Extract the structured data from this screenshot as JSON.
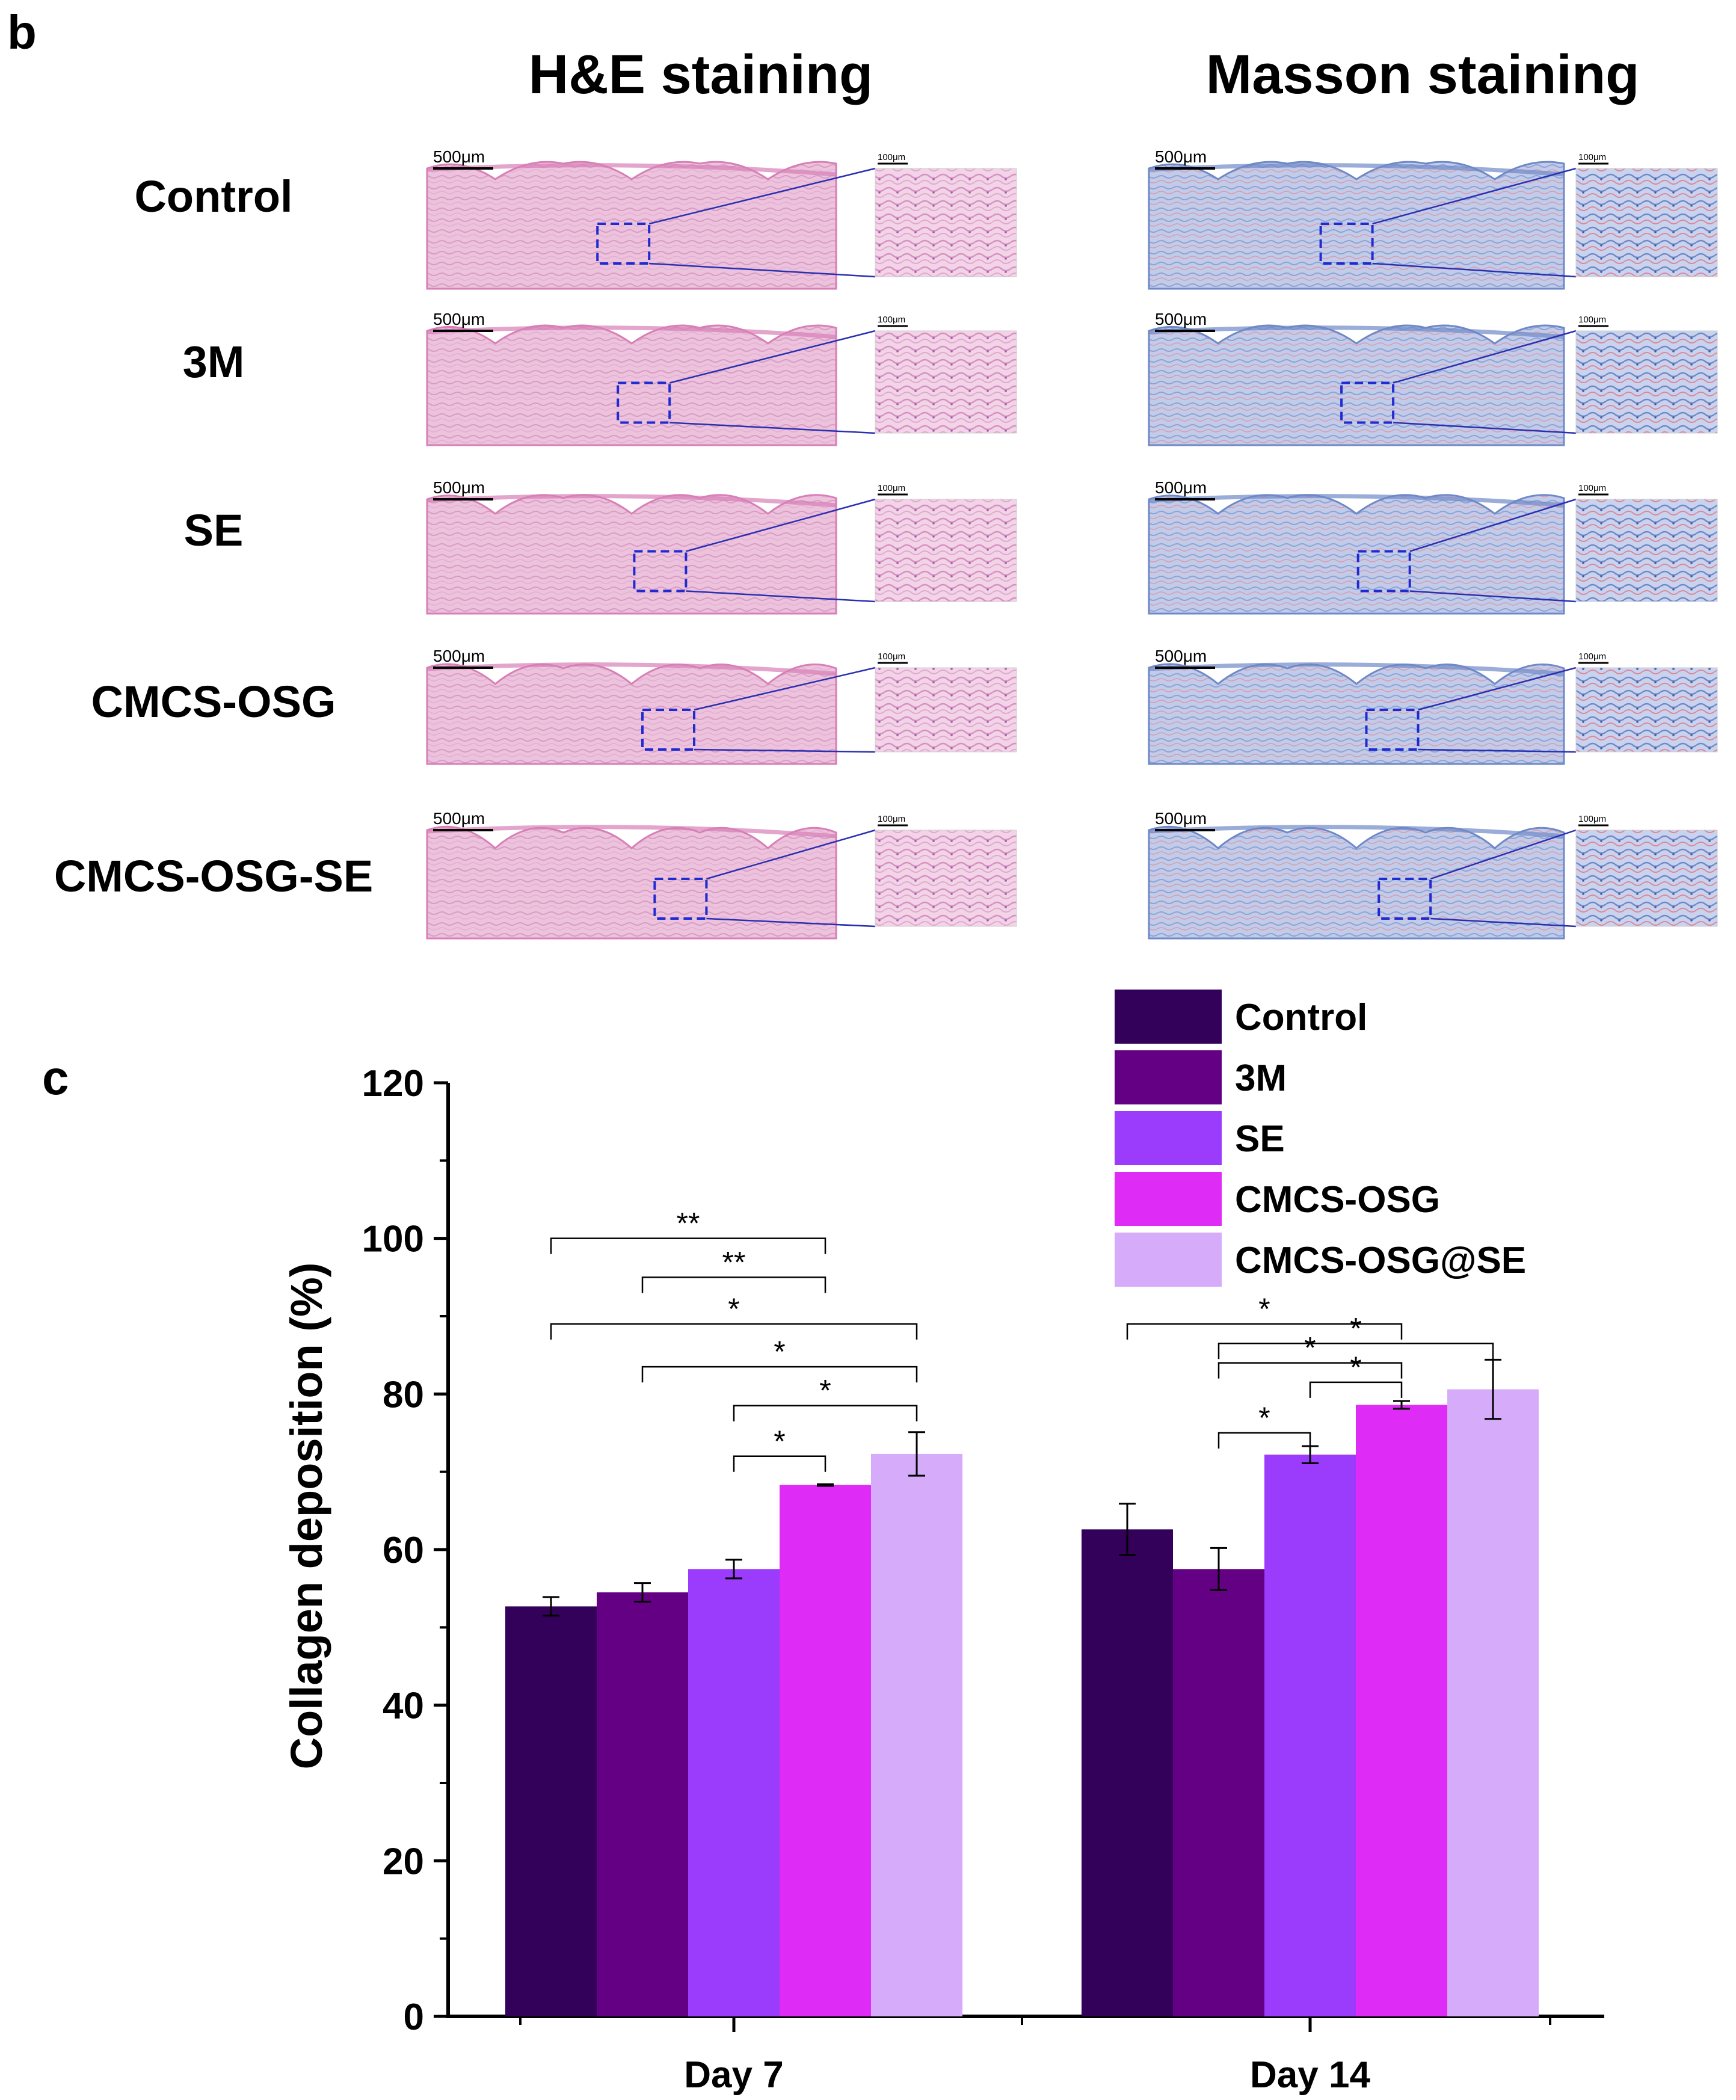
{
  "panel_b": {
    "letter": "b",
    "columns": [
      "H&E staining",
      "Masson staining"
    ],
    "rows": [
      "Control",
      "3M",
      "SE",
      "CMCS-OSG",
      "CMCS-OSG-SE"
    ],
    "scale_main": "500μm",
    "scale_zoom": "100μm",
    "stain_colors": {
      "he_base": "#ecc2dd",
      "he_dark": "#d77fb6",
      "he_light": "#f7e6f1",
      "masson_base": "#c6cde8",
      "masson_dark": "#6f89c7",
      "masson_red": "#d9788f"
    }
  },
  "panel_c": {
    "letter": "c"
  },
  "chart_data": {
    "type": "bar",
    "ylabel": "Collagen deposition (%)",
    "xlabel": "",
    "ylim": [
      0,
      120
    ],
    "yticks": [
      0,
      20,
      40,
      60,
      80,
      100,
      120
    ],
    "categories": [
      "Day 7",
      "Day 14"
    ],
    "series": [
      {
        "name": "Control",
        "color": "#33005a",
        "values": [
          52.7,
          62.6
        ],
        "errors": [
          1.2,
          3.3
        ]
      },
      {
        "name": "3M",
        "color": "#640083",
        "values": [
          54.5,
          57.5
        ],
        "errors": [
          1.2,
          2.7
        ]
      },
      {
        "name": "SE",
        "color": "#9b3bfb",
        "values": [
          57.5,
          72.2
        ],
        "errors": [
          1.2,
          1.1
        ]
      },
      {
        "name": "CMCS-OSG",
        "color": "#df2bf6",
        "values": [
          68.3,
          78.6
        ],
        "errors": [
          0.1,
          0.5
        ]
      },
      {
        "name": "CMCS-OSG@SE",
        "color": "#d5abfa",
        "values": [
          72.3,
          80.6
        ],
        "errors": [
          2.8,
          3.8
        ]
      }
    ],
    "legend": "top-right",
    "significance": [
      {
        "group": 0,
        "from": 0,
        "to": 3,
        "y": 100.0,
        "label": "**"
      },
      {
        "group": 0,
        "from": 1,
        "to": 3,
        "y": 95.0,
        "label": "**"
      },
      {
        "group": 0,
        "from": 0,
        "to": 4,
        "y": 89.0,
        "label": "*"
      },
      {
        "group": 0,
        "from": 1,
        "to": 4,
        "y": 83.5,
        "label": "*"
      },
      {
        "group": 0,
        "from": 2,
        "to": 4,
        "y": 78.5,
        "label": "*"
      },
      {
        "group": 0,
        "from": 2,
        "to": 3,
        "y": 72.0,
        "label": "*"
      },
      {
        "group": 1,
        "from": 0,
        "to": 3,
        "y": 89.0,
        "label": "*"
      },
      {
        "group": 1,
        "from": 1,
        "to": 4,
        "y": 86.5,
        "label": "*"
      },
      {
        "group": 1,
        "from": 1,
        "to": 3,
        "y": 84.0,
        "label": "*"
      },
      {
        "group": 1,
        "from": 2,
        "to": 3,
        "y": 81.5,
        "label": "*"
      },
      {
        "group": 1,
        "from": 1,
        "to": 2,
        "y": 75.0,
        "label": "*"
      }
    ]
  }
}
